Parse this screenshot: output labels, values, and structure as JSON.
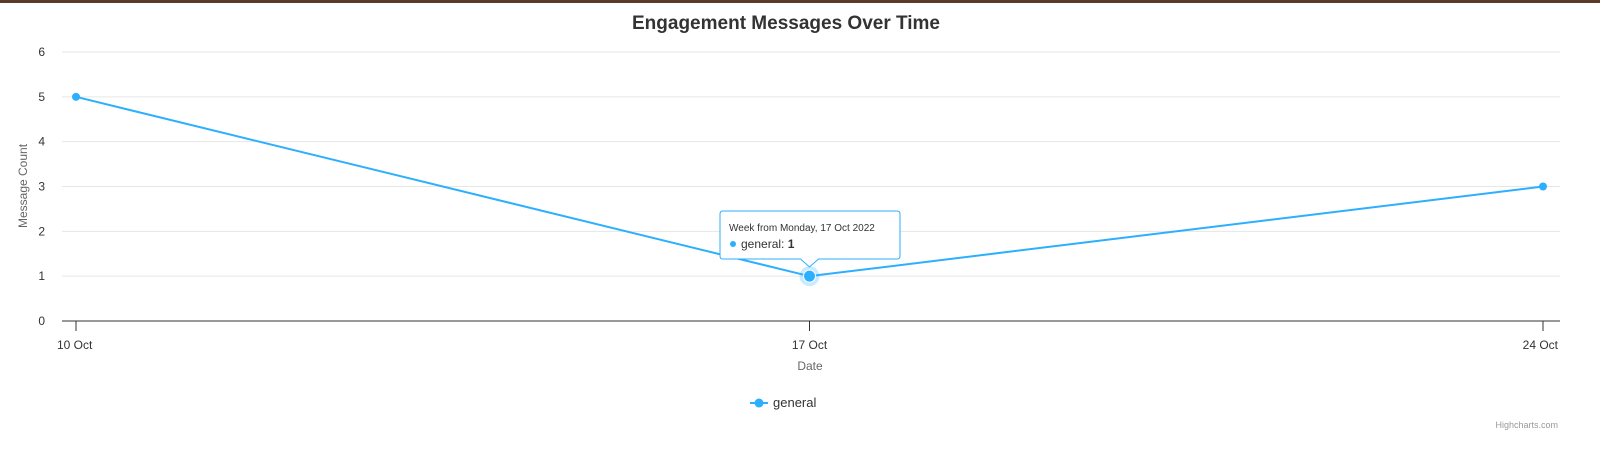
{
  "chart_data": {
    "type": "line",
    "title": "Engagement Messages Over Time",
    "xlabel": "Date",
    "ylabel": "Message Count",
    "categories": [
      "10 Oct",
      "17 Oct",
      "24 Oct"
    ],
    "ylim": [
      0,
      6
    ],
    "yticks": [
      "0",
      "1",
      "2",
      "3",
      "4",
      "5",
      "6"
    ],
    "grid": true,
    "series": [
      {
        "name": "general",
        "color": "#2caffe",
        "values": [
          5,
          1,
          3
        ]
      }
    ],
    "legend": {
      "position": "bottom-center",
      "label": "general"
    },
    "tooltip": {
      "point_index": 1,
      "header": "Week from Monday, 17 Oct 2022",
      "series_label": "general: ",
      "value": "1"
    }
  },
  "credits": "Highcharts.com",
  "colors": {
    "series": "#2caffe",
    "top_bar": "#5b3a29",
    "grid": "#e6e6e6",
    "axis": "#333333"
  }
}
